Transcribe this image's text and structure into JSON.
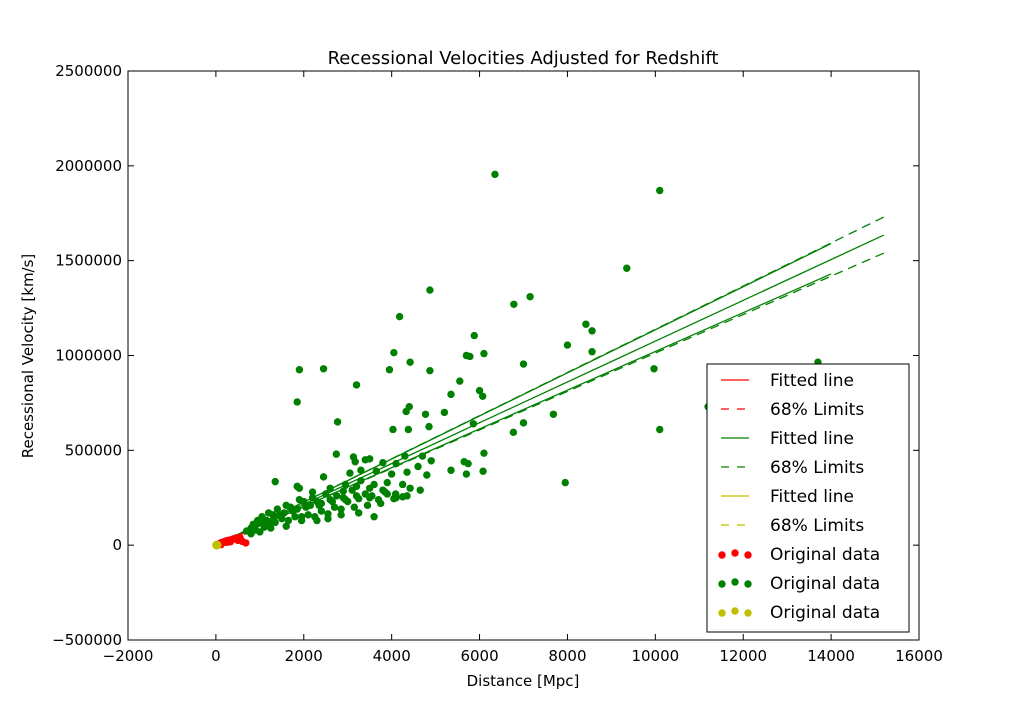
{
  "chart_data": {
    "type": "scatter",
    "title": "Recessional Velocities Adjusted for Redshift",
    "xlabel": "Distance [Mpc]",
    "ylabel": "Recessional Velocity [km/s]",
    "xlim": [
      -2000,
      16000
    ],
    "ylim": [
      -500000,
      2500000
    ],
    "xticks": [
      -2000,
      0,
      2000,
      4000,
      6000,
      8000,
      10000,
      12000,
      14000,
      16000
    ],
    "yticks": [
      -500000,
      0,
      500000,
      1000000,
      1500000,
      2000000,
      2500000
    ],
    "xtick_labels": [
      "−2000",
      "0",
      "2000",
      "4000",
      "6000",
      "8000",
      "10000",
      "12000",
      "14000",
      "16000"
    ],
    "ytick_labels": [
      "−500000",
      "0",
      "500000",
      "1000000",
      "1500000",
      "2000000",
      "2500000"
    ],
    "grid": false,
    "legend_position": "lower-right",
    "colors": {
      "red": "#ff0000",
      "green": "#008000",
      "yellow": "#bfbf00"
    },
    "legend": [
      {
        "label": "Fitted line",
        "kind": "solid",
        "color": "red"
      },
      {
        "label": "68% Limits",
        "kind": "dashed",
        "color": "red"
      },
      {
        "label": "Fitted line",
        "kind": "solid",
        "color": "green"
      },
      {
        "label": "68% Limits",
        "kind": "dashed",
        "color": "green"
      },
      {
        "label": "Fitted line",
        "kind": "solid",
        "color": "yellow"
      },
      {
        "label": "68% Limits",
        "kind": "dashed",
        "color": "yellow"
      },
      {
        "label": "Original data",
        "kind": "points",
        "color": "red"
      },
      {
        "label": "Original data",
        "kind": "points",
        "color": "green"
      },
      {
        "label": "Original data",
        "kind": "points",
        "color": "yellow"
      }
    ],
    "lines": [
      {
        "color": "green",
        "style": "solid",
        "x": [
          0,
          15200
        ],
        "y": [
          0,
          1635000
        ]
      },
      {
        "color": "green",
        "style": "solid",
        "x": [
          0,
          14000
        ],
        "y": [
          0,
          1590000
        ]
      },
      {
        "color": "green",
        "style": "solid",
        "x": [
          0,
          14000
        ],
        "y": [
          0,
          1430000
        ]
      },
      {
        "color": "green",
        "style": "dashed",
        "x": [
          0,
          15200
        ],
        "y": [
          0,
          1730000
        ]
      },
      {
        "color": "green",
        "style": "dashed",
        "x": [
          0,
          15200
        ],
        "y": [
          0,
          1540000
        ]
      },
      {
        "color": "red",
        "style": "solid",
        "x": [
          0,
          700
        ],
        "y": [
          0,
          70000
        ]
      },
      {
        "color": "red",
        "style": "dashed",
        "x": [
          0,
          700
        ],
        "y": [
          0,
          78000
        ]
      },
      {
        "color": "red",
        "style": "dashed",
        "x": [
          0,
          700
        ],
        "y": [
          0,
          62000
        ]
      },
      {
        "color": "yellow",
        "style": "solid",
        "x": [
          0,
          150
        ],
        "y": [
          0,
          15000
        ]
      }
    ],
    "series": [
      {
        "color": "green",
        "points": [
          [
            6350,
            1955000
          ],
          [
            10100,
            1870000
          ],
          [
            9350,
            1460000
          ],
          [
            4870,
            1345000
          ],
          [
            7150,
            1310000
          ],
          [
            6780,
            1270000
          ],
          [
            4180,
            1205000
          ],
          [
            8420,
            1165000
          ],
          [
            8560,
            1130000
          ],
          [
            5880,
            1105000
          ],
          [
            8000,
            1055000
          ],
          [
            8560,
            1020000
          ],
          [
            4050,
            1015000
          ],
          [
            5700,
            1000000
          ],
          [
            5780,
            995000
          ],
          [
            6100,
            1010000
          ],
          [
            4420,
            965000
          ],
          [
            13700,
            965000
          ],
          [
            7000,
            955000
          ],
          [
            9970,
            930000
          ],
          [
            1900,
            925000
          ],
          [
            2450,
            930000
          ],
          [
            3950,
            925000
          ],
          [
            4870,
            920000
          ],
          [
            5550,
            865000
          ],
          [
            3200,
            845000
          ],
          [
            6000,
            815000
          ],
          [
            5350,
            795000
          ],
          [
            6070,
            785000
          ],
          [
            1850,
            755000
          ],
          [
            4400,
            730000
          ],
          [
            5200,
            700000
          ],
          [
            4330,
            705000
          ],
          [
            11200,
            730000
          ],
          [
            7680,
            690000
          ],
          [
            4770,
            690000
          ],
          [
            2770,
            650000
          ],
          [
            5860,
            640000
          ],
          [
            7000,
            645000
          ],
          [
            4850,
            625000
          ],
          [
            4030,
            610000
          ],
          [
            4380,
            610000
          ],
          [
            10100,
            610000
          ],
          [
            6770,
            595000
          ],
          [
            2740,
            480000
          ],
          [
            3130,
            465000
          ],
          [
            3500,
            455000
          ],
          [
            3400,
            450000
          ],
          [
            4300,
            470000
          ],
          [
            4700,
            470000
          ],
          [
            4900,
            445000
          ],
          [
            5650,
            440000
          ],
          [
            3170,
            440000
          ],
          [
            3800,
            435000
          ],
          [
            4100,
            430000
          ],
          [
            4600,
            415000
          ],
          [
            6100,
            485000
          ],
          [
            1850,
            310000
          ],
          [
            1350,
            335000
          ],
          [
            2450,
            360000
          ],
          [
            3300,
            395000
          ],
          [
            3050,
            380000
          ],
          [
            3650,
            390000
          ],
          [
            4000,
            375000
          ],
          [
            4350,
            385000
          ],
          [
            4800,
            370000
          ],
          [
            5350,
            395000
          ],
          [
            5700,
            375000
          ],
          [
            6080,
            390000
          ],
          [
            5740,
            430000
          ],
          [
            4250,
            320000
          ],
          [
            4420,
            300000
          ],
          [
            4090,
            270000
          ],
          [
            4250,
            255000
          ],
          [
            3800,
            290000
          ],
          [
            3500,
            300000
          ],
          [
            3200,
            310000
          ],
          [
            2900,
            285000
          ],
          [
            2500,
            270000
          ],
          [
            2200,
            250000
          ],
          [
            1900,
            240000
          ],
          [
            1600,
            210000
          ],
          [
            1400,
            190000
          ],
          [
            1200,
            170000
          ],
          [
            1050,
            150000
          ],
          [
            950,
            130000
          ],
          [
            850,
            110000
          ],
          [
            800,
            90000
          ],
          [
            700,
            75000
          ],
          [
            1000,
            120000
          ],
          [
            1300,
            160000
          ],
          [
            1700,
            200000
          ],
          [
            2000,
            230000
          ],
          [
            2300,
            230000
          ],
          [
            2600,
            240000
          ],
          [
            2900,
            250000
          ],
          [
            3200,
            260000
          ],
          [
            3500,
            250000
          ],
          [
            3700,
            240000
          ],
          [
            3900,
            270000
          ],
          [
            4100,
            250000
          ],
          [
            3400,
            270000
          ],
          [
            3000,
            230000
          ],
          [
            2700,
            200000
          ],
          [
            2400,
            180000
          ],
          [
            2100,
            160000
          ],
          [
            1800,
            150000
          ],
          [
            1500,
            140000
          ],
          [
            1200,
            110000
          ],
          [
            900,
            80000
          ],
          [
            1100,
            95000
          ],
          [
            1350,
            120000
          ],
          [
            1650,
            130000
          ],
          [
            1950,
            150000
          ],
          [
            2250,
            150000
          ],
          [
            2550,
            165000
          ],
          [
            2850,
            190000
          ],
          [
            3150,
            200000
          ],
          [
            3450,
            210000
          ],
          [
            3750,
            220000
          ],
          [
            4050,
            245000
          ],
          [
            4350,
            260000
          ],
          [
            4650,
            290000
          ],
          [
            3600,
            150000
          ],
          [
            3250,
            170000
          ],
          [
            2850,
            160000
          ],
          [
            2550,
            140000
          ],
          [
            2300,
            130000
          ],
          [
            1950,
            130000
          ],
          [
            1600,
            100000
          ],
          [
            1250,
            90000
          ],
          [
            1000,
            70000
          ],
          [
            800,
            60000
          ],
          [
            1900,
            300000
          ],
          [
            2200,
            280000
          ],
          [
            2600,
            300000
          ],
          [
            2950,
            320000
          ],
          [
            3300,
            340000
          ],
          [
            3600,
            320000
          ],
          [
            3900,
            330000
          ],
          [
            3100,
            290000
          ],
          [
            2750,
            260000
          ],
          [
            2400,
            220000
          ],
          [
            2150,
            210000
          ],
          [
            1750,
            180000
          ],
          [
            1450,
            160000
          ],
          [
            1150,
            130000
          ],
          [
            1550,
            170000
          ],
          [
            1850,
            190000
          ],
          [
            2050,
            200000
          ],
          [
            2350,
            210000
          ],
          [
            2650,
            230000
          ],
          [
            2950,
            240000
          ],
          [
            3250,
            245000
          ],
          [
            3550,
            260000
          ],
          [
            3850,
            280000
          ],
          [
            7950,
            330000
          ]
        ]
      },
      {
        "color": "red",
        "points": [
          [
            50,
            5000
          ],
          [
            80,
            9000
          ],
          [
            110,
            12000
          ],
          [
            140,
            14000
          ],
          [
            170,
            17000
          ],
          [
            200,
            19000
          ],
          [
            230,
            22000
          ],
          [
            260,
            24000
          ],
          [
            300,
            26000
          ],
          [
            340,
            28000
          ],
          [
            380,
            31000
          ],
          [
            420,
            35000
          ],
          [
            460,
            38000
          ],
          [
            500,
            25000
          ],
          [
            550,
            40000
          ],
          [
            600,
            20000
          ],
          [
            680,
            12000
          ],
          [
            120,
            3000
          ],
          [
            250,
            15000
          ],
          [
            330,
            18000
          ]
        ]
      },
      {
        "color": "yellow",
        "points": [
          [
            0,
            0
          ],
          [
            10,
            1000
          ],
          [
            20,
            2500
          ],
          [
            30,
            -2000
          ],
          [
            40,
            3000
          ],
          [
            15,
            -4000
          ],
          [
            25,
            5000
          ],
          [
            5,
            2000
          ],
          [
            35,
            -1000
          ],
          [
            45,
            500
          ]
        ]
      }
    ]
  }
}
